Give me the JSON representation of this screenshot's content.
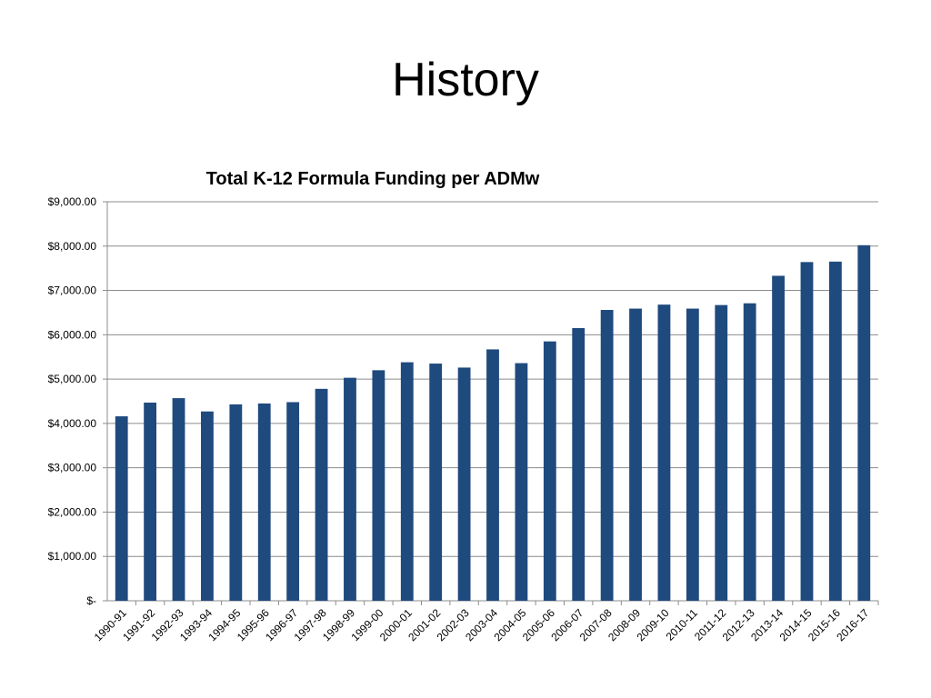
{
  "slide": {
    "title": "History"
  },
  "chart_data": {
    "type": "bar",
    "title": "Total K-12 Formula Funding per ADMw",
    "xlabel": "",
    "ylabel": "",
    "ylim": [
      0,
      9000
    ],
    "yticks": [
      0,
      1000,
      2000,
      3000,
      4000,
      5000,
      6000,
      7000,
      8000,
      9000
    ],
    "ytick_labels": [
      "$-",
      "$1,000.00",
      "$2,000.00",
      "$3,000.00",
      "$4,000.00",
      "$5,000.00",
      "$6,000.00",
      "$7,000.00",
      "$8,000.00",
      "$9,000.00"
    ],
    "grid": true,
    "bar_color": "#1f4a7e",
    "categories": [
      "1990-91",
      "1991-92",
      "1992-93",
      "1993-94",
      "1994-95",
      "1995-96",
      "1996-97",
      "1997-98",
      "1998-99",
      "1999-00",
      "2000-01",
      "2001-02",
      "2002-03",
      "2003-04",
      "2004-05",
      "2005-06",
      "2006-07",
      "2007-08",
      "2008-09",
      "2009-10",
      "2010-11",
      "2011-12",
      "2012-13",
      "2013-14",
      "2014-15",
      "2015-16",
      "2016-17"
    ],
    "values": [
      4160,
      4470,
      4570,
      4270,
      4430,
      4450,
      4480,
      4780,
      5030,
      5200,
      5380,
      5350,
      5260,
      5670,
      5360,
      5850,
      6150,
      6560,
      6590,
      6680,
      6590,
      6670,
      6710,
      7330,
      7640,
      7650,
      8020
    ]
  }
}
